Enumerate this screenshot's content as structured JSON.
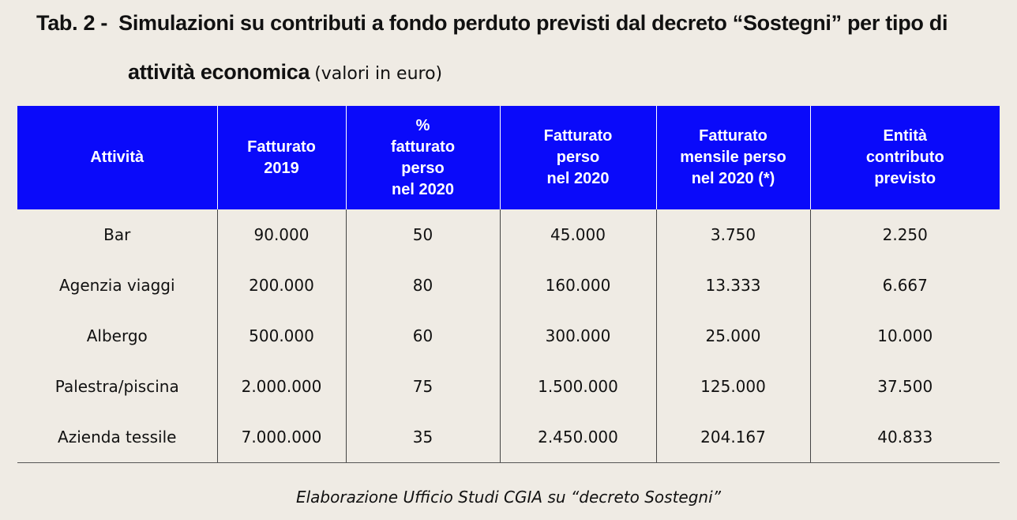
{
  "title": {
    "prefix": "Tab. 2 -",
    "line1": "Simulazioni su contributi a fondo perduto previsti dal decreto “Sostegni” per tipo di",
    "line2_bold": "attività economica",
    "line2_note": "(valori in euro)"
  },
  "table": {
    "headers": [
      [
        "Attività"
      ],
      [
        "Fatturato",
        "2019"
      ],
      [
        "%",
        "fatturato",
        "perso",
        "nel 2020"
      ],
      [
        "Fatturato",
        "perso",
        "nel 2020"
      ],
      [
        "Fatturato",
        "mensile perso",
        "nel 2020 (*)"
      ],
      [
        "Entità",
        "contributo",
        "previsto"
      ]
    ],
    "rows": [
      [
        "Bar",
        "90.000",
        "50",
        "45.000",
        "3.750",
        "2.250"
      ],
      [
        "Agenzia viaggi",
        "200.000",
        "80",
        "160.000",
        "13.333",
        "6.667"
      ],
      [
        "Albergo",
        "500.000",
        "60",
        "300.000",
        "25.000",
        "10.000"
      ],
      [
        "Palestra/piscina",
        "2.000.000",
        "75",
        "1.500.000",
        "125.000",
        "37.500"
      ],
      [
        "Azienda tessile",
        "7.000.000",
        "35",
        "2.450.000",
        "204.167",
        "40.833"
      ]
    ]
  },
  "source": "Elaborazione Ufficio Studi CGIA su “decreto Sostegni”",
  "colors": {
    "header_bg": "#0a0afa",
    "page_bg": "#efebe4"
  }
}
